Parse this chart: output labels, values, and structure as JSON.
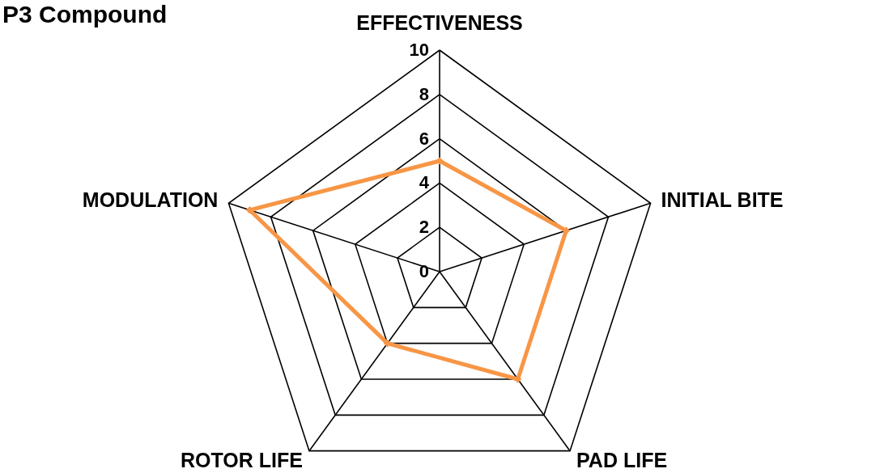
{
  "chart_data": {
    "type": "radar",
    "title": "P3 Compound",
    "categories": [
      "EFFECTIVENESS",
      "INITIAL BITE",
      "PAD LIFE",
      "ROTOR LIFE",
      "MODULATION"
    ],
    "series": [
      {
        "color": "#f79646",
        "values": [
          5,
          6,
          6,
          4,
          9
        ]
      }
    ],
    "ylim": [
      0,
      10
    ],
    "yticks": [
      0,
      2,
      4,
      6,
      8,
      10
    ],
    "grid": true,
    "marker": "diamond",
    "line_style": "solid"
  }
}
